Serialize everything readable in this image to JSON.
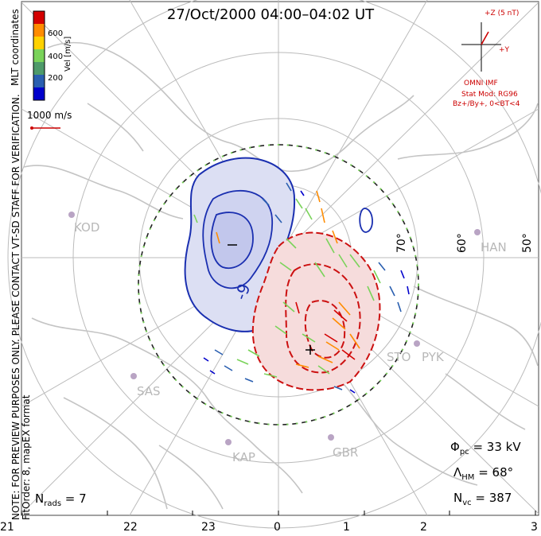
{
  "title": "27/Oct/2000 04:00–04:02 UT",
  "colorbar": {
    "title": "Vel [m/s]",
    "ticks": [
      "600",
      "400",
      "200"
    ],
    "colors": [
      "#0000cc",
      "#2a5fb0",
      "#7ad35a",
      "#ffd200",
      "#ff8c00",
      "#d40000"
    ]
  },
  "side_notes": {
    "mlt": "MLT coordinates",
    "note_line1": "NOTE: FOR PREVIEW PURPOSES ONLY. PLEASE CONTACT VT-SD STAFF FOR VERIFICATION.",
    "note_line2": "FitOrder: 8, mapEX format"
  },
  "reference_vector": "1000 m/s",
  "imf": {
    "z_label": "+Z (5 nT)",
    "y_label": "+Y",
    "source": "OMNI IMF",
    "model": "Stat Mod: RG96",
    "condition": "Bz+/By+, 0<BT<4"
  },
  "latitude_labels": [
    "70°",
    "60°",
    "50°"
  ],
  "stations": [
    "KOD",
    "HAN",
    "STO",
    "PYK",
    "SAS",
    "KAP",
    "GBR"
  ],
  "contour_labels": [
    "-9",
    "-",
    "+"
  ],
  "stats": {
    "phi_pc": "33 kV",
    "lambda_hm": "68°",
    "n_vc": "387",
    "n_rads": "7"
  },
  "mlt_ticks": [
    "21",
    "22",
    "23",
    "0",
    "1",
    "2",
    "3"
  ]
}
